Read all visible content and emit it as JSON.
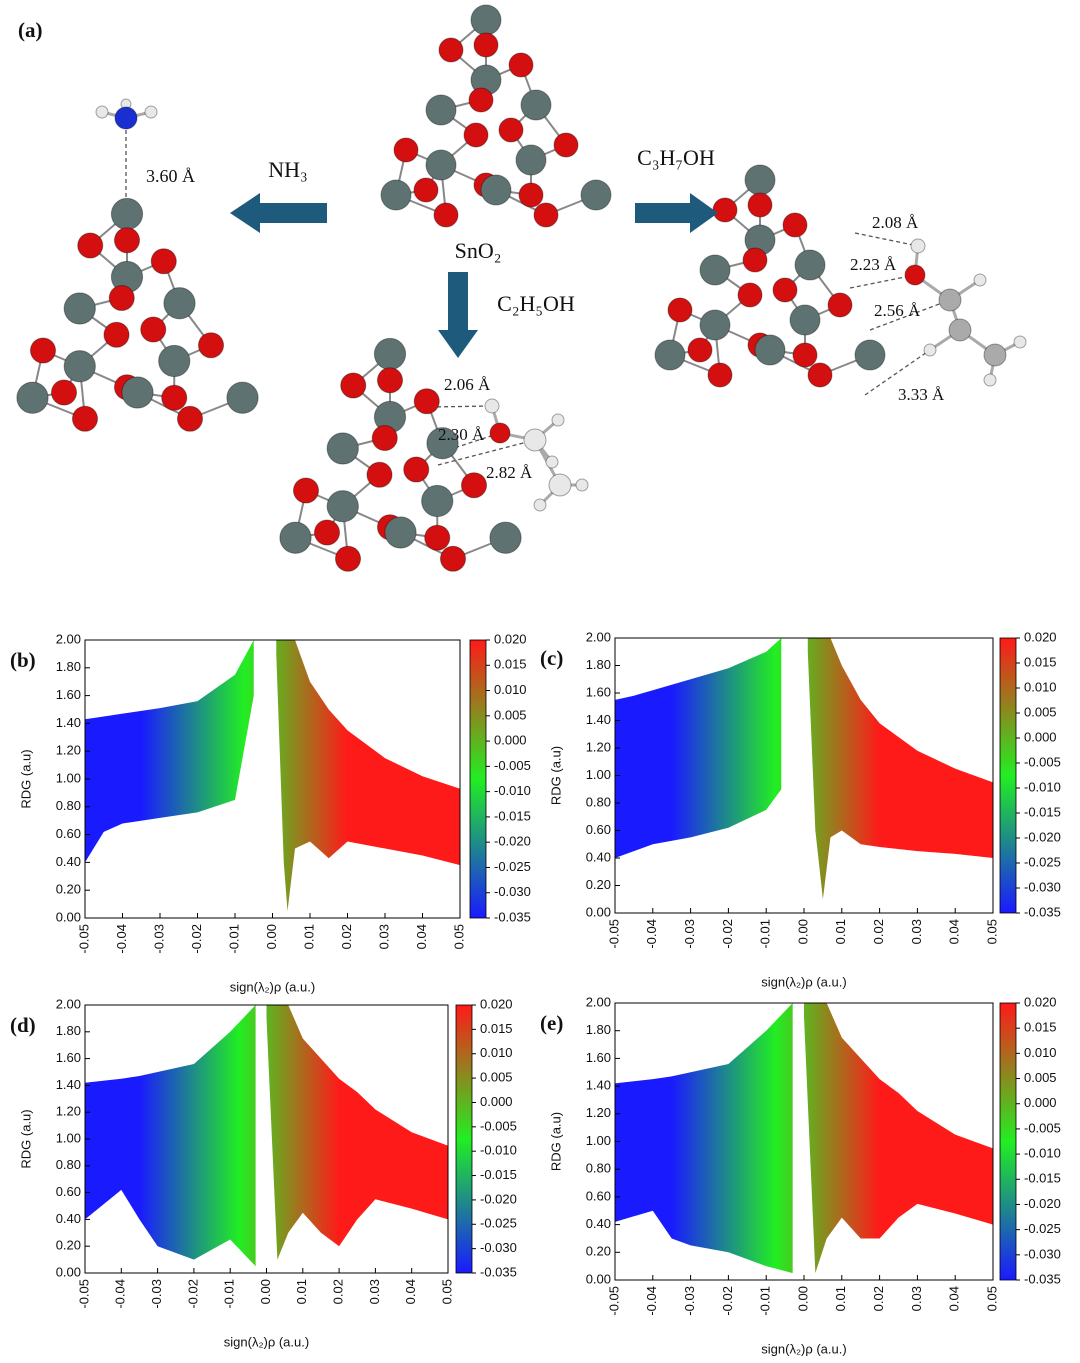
{
  "figure": {
    "panel": "(a)",
    "nh3": "NH₃",
    "sno2": "SnO₂",
    "c3h7oh": "C₃H₇OH",
    "c2h5oh": "C₂H₅OH",
    "d_nh3": "3.60 Å",
    "d_eth": [
      "2.06 Å",
      "2.30 Å",
      "2.82 Å"
    ],
    "d_prop": [
      "2.08 Å",
      "2.23 Å",
      "2.56 Å",
      "3.33 Å"
    ]
  },
  "chart_data": [
    {
      "type": "scatter",
      "label": "(b)",
      "ylabel": "RDG (a.u)",
      "xlabel": "sign(λ₂)ρ (a.u.)",
      "xlim": [
        -0.05,
        0.05
      ],
      "ylim": [
        0,
        2
      ],
      "xticks": [
        -0.05,
        -0.04,
        -0.03,
        -0.02,
        -0.01,
        {
          "value": 0,
          "label": "0.00"
        },
        0.01,
        0.02,
        0.03,
        0.04,
        0.05
      ],
      "yticks": [
        {
          "value": 0,
          "label": "0.00"
        },
        {
          "value": 0.2,
          "label": "0.20"
        },
        {
          "value": 0.4,
          "label": "0.40"
        },
        {
          "value": 0.6,
          "label": "0.60"
        },
        {
          "value": 0.8,
          "label": "0.80"
        },
        {
          "value": 1,
          "label": "1.00"
        },
        {
          "value": 1.2,
          "label": "1.20"
        },
        {
          "value": 1.4,
          "label": "1.40"
        },
        {
          "value": 1.6,
          "label": "1.60"
        },
        {
          "value": 1.8,
          "label": "1.80"
        },
        {
          "value": 2,
          "label": "2.00"
        }
      ],
      "colorbar": {
        "lim": [
          -0.035,
          0.02
        ],
        "colors": [
          "#1a1aff",
          "#22ee22",
          "#ff1a1a"
        ],
        "ticks": [
          {
            "value": 0.02,
            "label": "0.020"
          },
          0.015,
          {
            "value": 0.01,
            "label": "0.010"
          },
          0.005,
          {
            "value": 0,
            "label": "0.000"
          },
          -0.005,
          {
            "value": -0.01,
            "label": "-0.010"
          },
          -0.015,
          {
            "value": -0.02,
            "label": "-0.020"
          },
          -0.025,
          {
            "value": -0.03,
            "label": "-0.030"
          },
          -0.035
        ]
      },
      "regions": [
        {
          "x": [
            -0.05,
            -0.045,
            -0.04,
            -0.03,
            -0.02,
            -0.01,
            -0.005
          ],
          "high": [
            1.43,
            1.45,
            1.47,
            1.51,
            1.56,
            1.75,
            2.0
          ],
          "low": [
            0.4,
            0.62,
            0.68,
            0.72,
            0.76,
            0.85,
            1.6
          ]
        },
        {
          "x": [
            0.001,
            0.003,
            0.004,
            0.006,
            0.01,
            0.015,
            0.02,
            0.03,
            0.04,
            0.05
          ],
          "high": [
            2.0,
            2.0,
            2.0,
            2.0,
            1.7,
            1.5,
            1.35,
            1.15,
            1.02,
            0.93
          ],
          "low": [
            1.9,
            0.4,
            0.05,
            0.5,
            0.55,
            0.43,
            0.55,
            0.5,
            0.45,
            0.38
          ]
        }
      ]
    },
    {
      "type": "scatter",
      "label": "(c)",
      "ylabel": "RDG (a.u)",
      "xlabel": "sign(λ₂)ρ (a.u.)",
      "xlim": [
        -0.05,
        0.05
      ],
      "ylim": [
        0,
        2
      ],
      "xticks": [
        -0.05,
        -0.04,
        -0.03,
        -0.02,
        -0.01,
        {
          "value": 0,
          "label": "0.00"
        },
        0.01,
        0.02,
        0.03,
        0.04,
        0.05
      ],
      "yticks": [
        {
          "value": 0,
          "label": "0.00"
        },
        {
          "value": 0.2,
          "label": "0.20"
        },
        {
          "value": 0.4,
          "label": "0.40"
        },
        {
          "value": 0.6,
          "label": "0.60"
        },
        {
          "value": 0.8,
          "label": "0.80"
        },
        {
          "value": 1,
          "label": "1.00"
        },
        {
          "value": 1.2,
          "label": "1.20"
        },
        {
          "value": 1.4,
          "label": "1.40"
        },
        {
          "value": 1.6,
          "label": "1.60"
        },
        {
          "value": 1.8,
          "label": "1.80"
        },
        {
          "value": 2,
          "label": "2.00"
        }
      ],
      "colorbar": {
        "lim": [
          -0.035,
          0.02
        ],
        "colors": [
          "#1a1aff",
          "#22ee22",
          "#ff1a1a"
        ],
        "ticks": [
          {
            "value": 0.02,
            "label": "0.020"
          },
          0.015,
          {
            "value": 0.01,
            "label": "0.010"
          },
          0.005,
          {
            "value": 0,
            "label": "0.000"
          },
          -0.005,
          {
            "value": -0.01,
            "label": "-0.010"
          },
          -0.015,
          {
            "value": -0.02,
            "label": "-0.020"
          },
          -0.025,
          {
            "value": -0.03,
            "label": "-0.030"
          },
          -0.035
        ]
      },
      "regions": [
        {
          "x": [
            -0.05,
            -0.045,
            -0.04,
            -0.03,
            -0.02,
            -0.01,
            -0.006
          ],
          "high": [
            1.55,
            1.58,
            1.62,
            1.7,
            1.78,
            1.9,
            2.0
          ],
          "low": [
            0.4,
            0.45,
            0.5,
            0.55,
            0.62,
            0.75,
            0.9
          ]
        },
        {
          "x": [
            0.001,
            0.003,
            0.005,
            0.007,
            0.01,
            0.015,
            0.02,
            0.03,
            0.04,
            0.05
          ],
          "high": [
            2.0,
            2.0,
            2.0,
            2.0,
            1.8,
            1.55,
            1.38,
            1.18,
            1.05,
            0.95
          ],
          "low": [
            1.9,
            0.6,
            0.1,
            0.55,
            0.6,
            0.5,
            0.48,
            0.45,
            0.43,
            0.4
          ]
        }
      ]
    },
    {
      "type": "scatter",
      "label": "(d)",
      "ylabel": "RDG (a.u)",
      "xlabel": "sign(λ₂)ρ (a.u.)",
      "xlim": [
        -0.05,
        0.05
      ],
      "ylim": [
        0,
        2
      ],
      "xticks": [
        -0.05,
        -0.04,
        -0.03,
        -0.02,
        -0.01,
        {
          "value": 0,
          "label": "0.00"
        },
        0.01,
        0.02,
        0.03,
        0.04,
        0.05
      ],
      "yticks": [
        {
          "value": 0,
          "label": "0.00"
        },
        {
          "value": 0.2,
          "label": "0.20"
        },
        {
          "value": 0.4,
          "label": "0.40"
        },
        {
          "value": 0.6,
          "label": "0.60"
        },
        {
          "value": 0.8,
          "label": "0.80"
        },
        {
          "value": 1,
          "label": "1.00"
        },
        {
          "value": 1.2,
          "label": "1.20"
        },
        {
          "value": 1.4,
          "label": "1.40"
        },
        {
          "value": 1.6,
          "label": "1.60"
        },
        {
          "value": 1.8,
          "label": "1.80"
        },
        {
          "value": 2,
          "label": "2.00"
        }
      ],
      "colorbar": {
        "lim": [
          -0.035,
          0.02
        ],
        "colors": [
          "#1a1aff",
          "#22ee22",
          "#ff1a1a"
        ],
        "ticks": [
          {
            "value": 0.02,
            "label": "0.020"
          },
          0.015,
          {
            "value": 0.01,
            "label": "0.010"
          },
          0.005,
          {
            "value": 0,
            "label": "0.000"
          },
          -0.005,
          {
            "value": -0.01,
            "label": "-0.010"
          },
          -0.015,
          {
            "value": -0.02,
            "label": "-0.020"
          },
          -0.025,
          {
            "value": -0.03,
            "label": "-0.030"
          },
          -0.035
        ]
      },
      "regions": [
        {
          "x": [
            -0.05,
            -0.04,
            -0.035,
            -0.03,
            -0.02,
            -0.01,
            -0.003
          ],
          "high": [
            1.42,
            1.45,
            1.47,
            1.5,
            1.56,
            1.8,
            2.0
          ],
          "low": [
            0.4,
            0.62,
            0.4,
            0.2,
            0.1,
            0.25,
            0.05
          ]
        },
        {
          "x": [
            0.0,
            0.003,
            0.006,
            0.01,
            0.015,
            0.02,
            0.025,
            0.03,
            0.04,
            0.05
          ],
          "high": [
            2.0,
            2.0,
            2.0,
            1.75,
            1.6,
            1.45,
            1.35,
            1.22,
            1.05,
            0.95
          ],
          "low": [
            1.9,
            0.1,
            0.3,
            0.45,
            0.3,
            0.2,
            0.4,
            0.55,
            0.48,
            0.4
          ]
        }
      ]
    },
    {
      "type": "scatter",
      "label": "(e)",
      "ylabel": "RDG (a.u)",
      "xlabel": "sign(λ₂)ρ (a.u.)",
      "xlim": [
        -0.05,
        0.05
      ],
      "ylim": [
        0,
        2
      ],
      "xticks": [
        -0.05,
        -0.04,
        -0.03,
        -0.02,
        -0.01,
        {
          "value": 0,
          "label": "0.00"
        },
        0.01,
        0.02,
        0.03,
        0.04,
        0.05
      ],
      "yticks": [
        {
          "value": 0,
          "label": "0.00"
        },
        {
          "value": 0.2,
          "label": "0.20"
        },
        {
          "value": 0.4,
          "label": "0.40"
        },
        {
          "value": 0.6,
          "label": "0.60"
        },
        {
          "value": 0.8,
          "label": "0.80"
        },
        {
          "value": 1,
          "label": "1.00"
        },
        {
          "value": 1.2,
          "label": "1.20"
        },
        {
          "value": 1.4,
          "label": "1.40"
        },
        {
          "value": 1.6,
          "label": "1.60"
        },
        {
          "value": 1.8,
          "label": "1.80"
        },
        {
          "value": 2,
          "label": "2.00"
        }
      ],
      "colorbar": {
        "lim": [
          -0.035,
          0.02
        ],
        "colors": [
          "#1a1aff",
          "#22ee22",
          "#ff1a1a"
        ],
        "ticks": [
          {
            "value": 0.02,
            "label": "0.020"
          },
          0.015,
          {
            "value": 0.01,
            "label": "0.010"
          },
          0.005,
          {
            "value": 0,
            "label": "0.000"
          },
          -0.005,
          {
            "value": -0.01,
            "label": "-0.010"
          },
          -0.015,
          {
            "value": -0.02,
            "label": "-0.020"
          },
          -0.025,
          {
            "value": -0.03,
            "label": "-0.030"
          },
          -0.035
        ]
      },
      "regions": [
        {
          "x": [
            -0.05,
            -0.04,
            -0.035,
            -0.03,
            -0.02,
            -0.01,
            -0.003
          ],
          "high": [
            1.42,
            1.45,
            1.47,
            1.5,
            1.56,
            1.8,
            2.0
          ],
          "low": [
            0.42,
            0.5,
            0.3,
            0.25,
            0.2,
            0.1,
            0.05
          ]
        },
        {
          "x": [
            0.0,
            0.003,
            0.006,
            0.01,
            0.015,
            0.02,
            0.025,
            0.03,
            0.04,
            0.05
          ],
          "high": [
            2.0,
            2.0,
            2.0,
            1.75,
            1.6,
            1.45,
            1.35,
            1.22,
            1.05,
            0.95
          ],
          "low": [
            1.9,
            0.05,
            0.3,
            0.45,
            0.3,
            0.3,
            0.45,
            0.55,
            0.48,
            0.4
          ]
        }
      ]
    }
  ]
}
